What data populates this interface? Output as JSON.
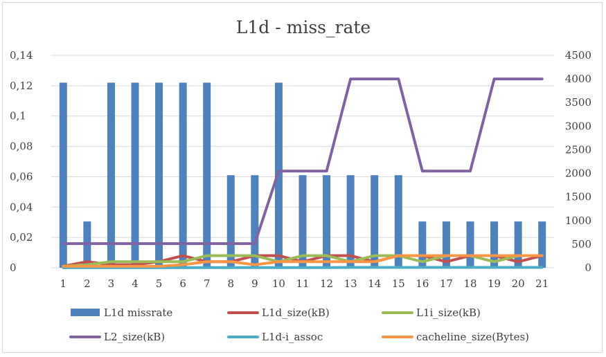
{
  "chart_data": {
    "type": "bar",
    "title": "L1d - miss_rate",
    "xlabel": "",
    "ylabel": "",
    "categories": [
      "1",
      "2",
      "3",
      "4",
      "5",
      "6",
      "7",
      "8",
      "9",
      "10",
      "11",
      "12",
      "13",
      "14",
      "15",
      "16",
      "17",
      "18",
      "19",
      "20",
      "21"
    ],
    "y_left": {
      "lim": [
        0,
        0.14
      ],
      "ticks": [
        0,
        0.02,
        0.04,
        0.06,
        0.08,
        0.1,
        0.12,
        0.14
      ],
      "tick_labels": [
        "0",
        "0,02",
        "0,04",
        "0,06",
        "0,08",
        "0,1",
        "0,12",
        "0,14"
      ]
    },
    "y_right": {
      "lim": [
        0,
        4500
      ],
      "ticks": [
        0,
        500,
        1000,
        1500,
        2000,
        2500,
        3000,
        3500,
        4000,
        4500
      ],
      "tick_labels": [
        "0",
        "500",
        "1000",
        "1500",
        "2000",
        "2500",
        "3000",
        "3500",
        "4000",
        "4500"
      ]
    },
    "grid": true,
    "legend_position": "bottom",
    "series": [
      {
        "name": "L1d missrate",
        "kind": "bar",
        "axis": "left",
        "color": "#4f81bd",
        "values": [
          0.122,
          0.0305,
          0.122,
          0.122,
          0.122,
          0.122,
          0.122,
          0.061,
          0.061,
          0.122,
          0.061,
          0.061,
          0.061,
          0.061,
          0.061,
          0.0305,
          0.0305,
          0.0305,
          0.0305,
          0.0305,
          0.0305
        ]
      },
      {
        "name": "L1d_size(kB)",
        "kind": "line",
        "axis": "right",
        "color": "#c0504d",
        "values": [
          32,
          128,
          64,
          64,
          128,
          256,
          128,
          128,
          256,
          256,
          128,
          256,
          256,
          128,
          256,
          256,
          128,
          256,
          256,
          128,
          256
        ]
      },
      {
        "name": "L1i_size(kB)",
        "kind": "line",
        "axis": "right",
        "color": "#9bbb59",
        "values": [
          32,
          64,
          128,
          128,
          128,
          128,
          256,
          256,
          256,
          128,
          256,
          256,
          128,
          256,
          256,
          128,
          256,
          256,
          128,
          256,
          256
        ]
      },
      {
        "name": "L2_size(kB)",
        "kind": "line",
        "axis": "right",
        "color": "#8064a2",
        "values": [
          512,
          512,
          512,
          512,
          512,
          512,
          512,
          512,
          512,
          2048,
          2048,
          2048,
          4000,
          4000,
          4000,
          2048,
          2048,
          2048,
          4000,
          4000,
          4000
        ]
      },
      {
        "name": "L1d-i_assoc",
        "kind": "line",
        "axis": "right",
        "color": "#4bacc6",
        "values": [
          2,
          2,
          2,
          2,
          2,
          2,
          4,
          4,
          4,
          4,
          4,
          4,
          8,
          8,
          8,
          8,
          8,
          8,
          8,
          8,
          8
        ]
      },
      {
        "name": "cacheline_size(Bytes)",
        "kind": "line",
        "axis": "right",
        "color": "#f79646",
        "values": [
          32,
          32,
          32,
          32,
          32,
          64,
          128,
          128,
          64,
          128,
          128,
          128,
          128,
          128,
          256,
          256,
          256,
          256,
          256,
          256,
          256
        ]
      }
    ]
  },
  "colors": {
    "grid": "#d9d9d9",
    "axis_text": "#404040",
    "frame": "#d9d9d9"
  }
}
